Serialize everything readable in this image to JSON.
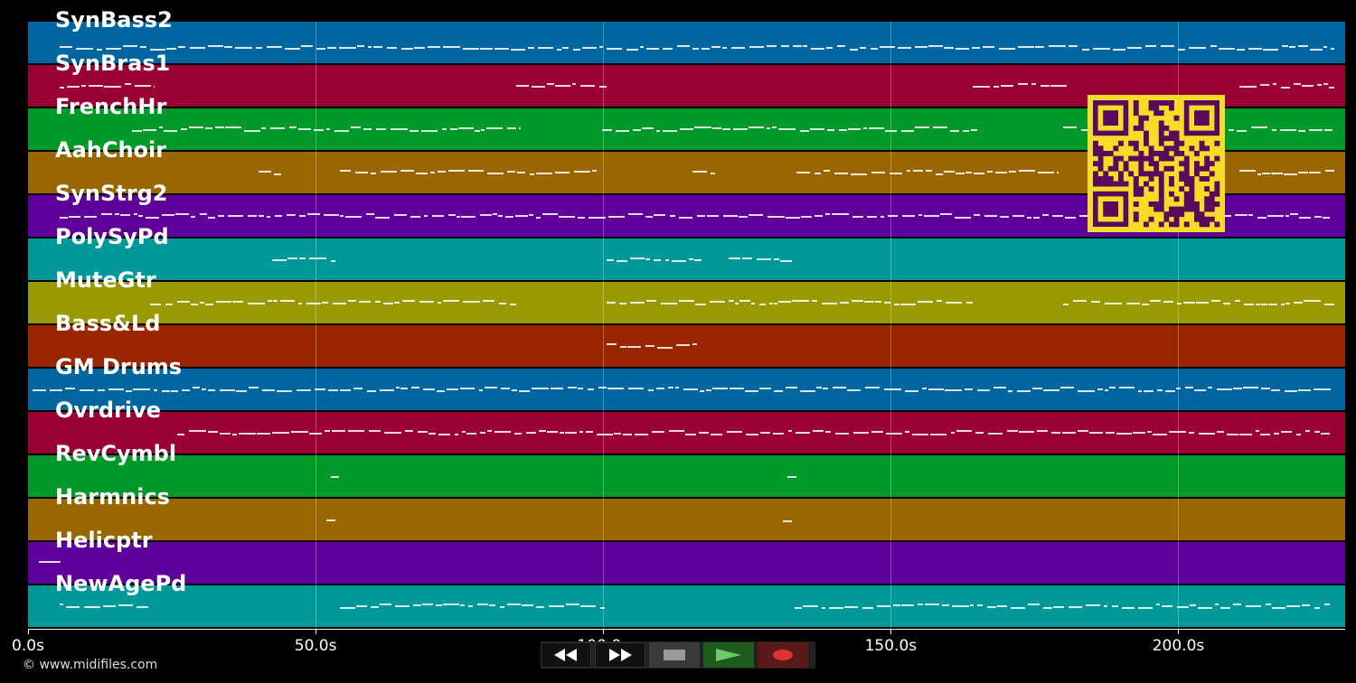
{
  "tracks": [
    {
      "name": "SynBass2",
      "color": "#00669f"
    },
    {
      "name": "SynBras1",
      "color": "#9b0033"
    },
    {
      "name": "FrenchHr",
      "color": "#00992a"
    },
    {
      "name": "AahChoir",
      "color": "#996600"
    },
    {
      "name": "SynStrg2",
      "color": "#5e0099"
    },
    {
      "name": "PolySyPd",
      "color": "#00999a"
    },
    {
      "name": "MuteGtr",
      "color": "#999900"
    },
    {
      "name": "Bass&Ld",
      "color": "#992600"
    },
    {
      "name": "GM Drums",
      "color": "#00669f"
    },
    {
      "name": "Ovrdrive",
      "color": "#9b0033"
    },
    {
      "name": "RevCymbl",
      "color": "#00992a"
    },
    {
      "name": "Harmnics",
      "color": "#996600"
    },
    {
      "name": "Helicptr",
      "color": "#5e0099"
    },
    {
      "name": "NewAgePd",
      "color": "#00999a"
    }
  ],
  "time_axis": {
    "min_s": 0,
    "max_s": 229,
    "ticks": [
      {
        "value": 0,
        "label": "0.0s"
      },
      {
        "value": 50,
        "label": "50.0s"
      },
      {
        "value": 100,
        "label": "100.0s"
      },
      {
        "value": 150,
        "label": "150.0s"
      },
      {
        "value": 200,
        "label": "200.0s"
      }
    ]
  },
  "copyright": "© www.midifiles.com",
  "transport": {
    "rewind_icon": "rewind-icon",
    "forward_icon": "fast-forward-icon",
    "stop_icon": "stop-icon",
    "play_icon": "play-icon",
    "record_icon": "record-icon"
  },
  "qr_code": {
    "color": "#f5dc28",
    "module_color": "#5a0a5a"
  }
}
